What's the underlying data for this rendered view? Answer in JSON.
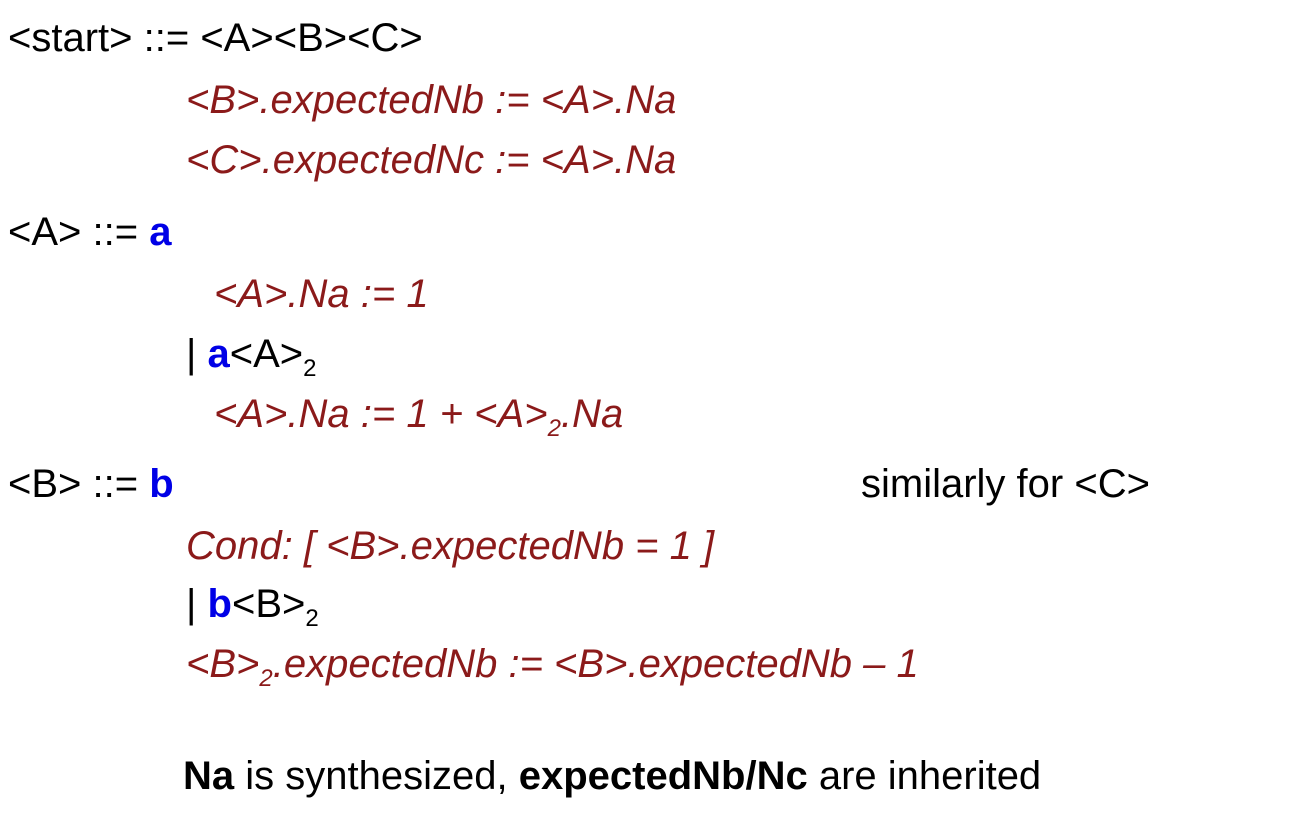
{
  "start": {
    "production": "<start> ::= <A><B><C>",
    "rule1": "<B>.expectedNb := <A>.Na",
    "rule2": "<C>.expectedNc := <A>.Na"
  },
  "a_prod": {
    "lhs": "<A> ::= ",
    "term": "a",
    "rule1": "<A>.Na := 1",
    "bar": "|  ",
    "alt_term": "a",
    "alt_nt": "<A>",
    "sub": "2",
    "rule2_pre": "<A>.Na := 1 + <A>",
    "rule2_sub": "2",
    "rule2_post": ".Na"
  },
  "b_prod": {
    "lhs": "<B> ::= ",
    "term": "b",
    "note": "similarly for <C>",
    "cond": "Cond: [ <B>.expectedNb = 1 ]",
    "bar": "|  ",
    "alt_term": "b",
    "alt_nt": "<B>",
    "sub": "2",
    "rule_pre": "<B>",
    "rule_sub": "2",
    "rule_post": ".expectedNb := <B>.expectedNb – 1"
  },
  "summary": {
    "na": "Na",
    "text1": " is synthesized, ",
    "expected": "expectedNb/Nc",
    "text2": " are inherited"
  }
}
